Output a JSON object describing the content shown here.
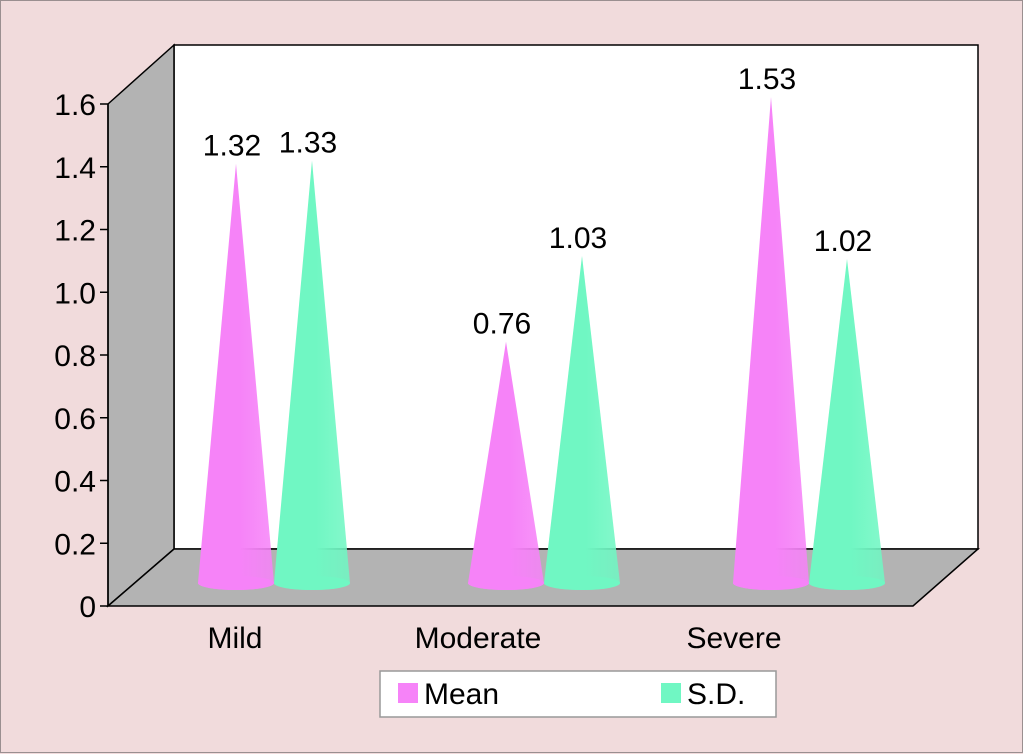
{
  "chart_data": {
    "type": "bar",
    "style": "3d-cone",
    "title": "",
    "xlabel": "",
    "ylabel": "",
    "categories": [
      "Mild",
      "Moderate",
      "Severe"
    ],
    "series": [
      {
        "name": "Mean",
        "values": [
          1.32,
          0.76,
          1.53
        ],
        "labels": [
          "1.32",
          "0.76",
          "1.53"
        ],
        "color": "#f683f8"
      },
      {
        "name": "S.D.",
        "values": [
          1.33,
          1.03,
          1.02
        ],
        "labels": [
          "1.33",
          "1.03",
          "1.02"
        ],
        "color": "#70f7c3"
      }
    ],
    "ylim": [
      0,
      1.6
    ],
    "yticks": [
      "0",
      "0.2",
      "0.4",
      "0.6",
      "0.8",
      "1.0",
      "1.2",
      "1.4",
      "1.6"
    ],
    "legend": {
      "position": "bottom-center",
      "entries": [
        "Mean",
        "S.D."
      ]
    }
  },
  "colors": {
    "background": "#f1dbdc",
    "back_wall": "#ffffff",
    "side_wall": "#b3b3b3",
    "floor": "#b3b3b3"
  }
}
